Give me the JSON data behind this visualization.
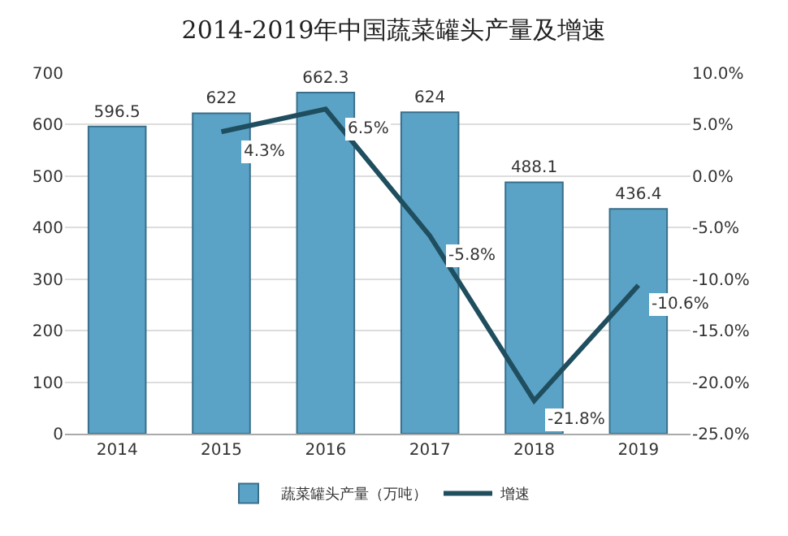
{
  "chart_data": {
    "type": "bar",
    "title": "2014-2019年中国蔬菜罐头产量及增速",
    "categories": [
      "2014",
      "2015",
      "2016",
      "2017",
      "2018",
      "2019"
    ],
    "series": [
      {
        "name": "蔬菜罐头产量（万吨）",
        "color": "#5ba3c6",
        "values": [
          596.5,
          622,
          662.3,
          624,
          488.1,
          436.4
        ],
        "value_labels": [
          "596.5",
          "622",
          "662.3",
          "624",
          "488.1",
          "436.4"
        ]
      },
      {
        "name": "增速",
        "type": "line",
        "axis": "y2",
        "color": "#1f4e5f",
        "values": [
          null,
          4.3,
          6.5,
          -5.8,
          -21.8,
          -10.6
        ],
        "value_labels": [
          null,
          "4.3%",
          "6.5%",
          "-5.8%",
          "-21.8%",
          "-10.6%"
        ]
      }
    ],
    "ylim": [
      0,
      700
    ],
    "yticks": [
      0,
      100,
      200,
      300,
      400,
      500,
      600,
      700
    ],
    "y2lim": [
      -25,
      10
    ],
    "y2ticks": [
      {
        "value": -25,
        "label": "-25.0%"
      },
      {
        "value": -20,
        "label": "-20.0%"
      },
      {
        "value": -15,
        "label": "-15.0%"
      },
      {
        "value": -10,
        "label": "-10.0%"
      },
      {
        "value": -5,
        "label": "-5.0%"
      },
      {
        "value": 0,
        "label": "0.0%"
      },
      {
        "value": 5,
        "label": "5.0%"
      },
      {
        "value": 10,
        "label": "10.0%"
      }
    ],
    "grid": "y",
    "legend": "bottom",
    "marker": "none"
  }
}
